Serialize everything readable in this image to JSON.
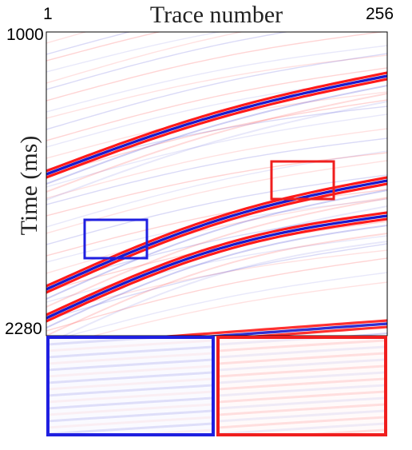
{
  "figure": {
    "title": "Trace number",
    "ylabel": "Time (ms)",
    "x_axis": {
      "min_label": "1",
      "max_label": "256",
      "range": [
        1,
        256
      ]
    },
    "y_axis": {
      "top_label": "1000",
      "bottom_label": "2280",
      "range": [
        1000,
        2280
      ]
    },
    "colors": {
      "positive": "#ff1a1a",
      "negative": "#1a1acc",
      "blue_box": "#1f1fe0",
      "red_box": "#f01e1e",
      "background": "#ffffff"
    },
    "zoom_panels": [
      {
        "name": "blue-zoom",
        "color": "blue"
      },
      {
        "name": "red-zoom",
        "color": "red"
      }
    ]
  }
}
